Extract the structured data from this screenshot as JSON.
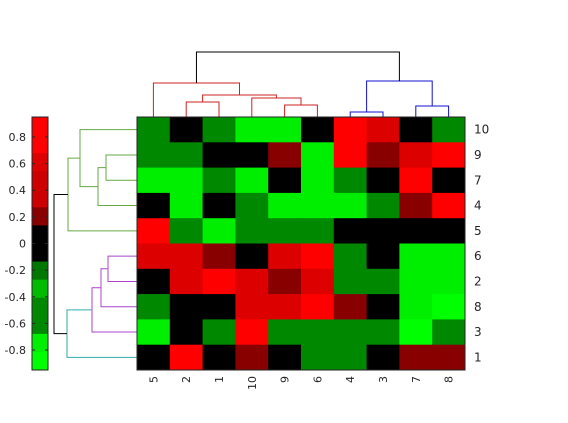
{
  "chart_data": {
    "type": "heatmap",
    "title": "",
    "xlabel": "",
    "ylabel": "",
    "column_labels": [
      "5",
      "2",
      "1",
      "10",
      "9",
      "6",
      "4",
      "3",
      "7",
      "8"
    ],
    "row_labels": [
      "10",
      "9",
      "7",
      "4",
      "5",
      "6",
      "2",
      "8",
      "3",
      "1"
    ],
    "values": [
      [
        -0.5,
        0.0,
        -0.5,
        -0.8,
        -0.8,
        0.0,
        0.8,
        0.6,
        0.0,
        -0.5
      ],
      [
        -0.5,
        -0.5,
        0.0,
        0.0,
        0.2,
        -0.8,
        0.8,
        0.2,
        0.6,
        0.8
      ],
      [
        -0.8,
        -0.8,
        -0.5,
        -0.8,
        0.0,
        -0.8,
        -0.5,
        0.0,
        0.8,
        0.0
      ],
      [
        0.0,
        -0.8,
        0.0,
        -0.5,
        -0.8,
        -0.8,
        -0.8,
        -0.5,
        0.2,
        0.8
      ],
      [
        0.8,
        -0.5,
        -0.8,
        -0.5,
        -0.5,
        -0.5,
        0.0,
        0.0,
        0.0,
        0.0
      ],
      [
        0.6,
        0.6,
        0.2,
        0.0,
        0.6,
        0.8,
        -0.5,
        0.0,
        -0.8,
        -0.8
      ],
      [
        0.0,
        0.6,
        0.8,
        0.6,
        0.2,
        0.6,
        -0.5,
        -0.5,
        -0.8,
        -0.8
      ],
      [
        -0.5,
        0.0,
        0.0,
        0.6,
        0.6,
        0.8,
        0.2,
        0.0,
        -0.8,
        -0.9
      ],
      [
        -0.8,
        0.0,
        -0.5,
        0.8,
        -0.5,
        -0.5,
        -0.5,
        -0.5,
        -0.9,
        -0.5
      ],
      [
        0.0,
        0.8,
        0.0,
        0.2,
        0.0,
        -0.5,
        -0.5,
        0.0,
        0.2,
        0.2
      ]
    ],
    "colorbar": {
      "ticks": [
        0.8,
        0.6,
        0.4,
        0.2,
        0,
        -0.2,
        -0.4,
        -0.6,
        -0.8
      ],
      "tick_labels": [
        "0.8",
        "0.6",
        "0.4",
        "0.2",
        "0",
        "-0.2",
        "-0.4",
        "-0.6",
        "-0.8"
      ],
      "range": [
        -0.95,
        0.95
      ],
      "placement": "left",
      "levels": [
        {
          "value": 0.8,
          "color": "#ff0000"
        },
        {
          "value": 0.6,
          "color": "#dd0000"
        },
        {
          "value": 0.4,
          "color": "#cc0000"
        },
        {
          "value": 0.2,
          "color": "#880000"
        },
        {
          "value": 0.0,
          "color": "#000000"
        },
        {
          "value": -0.2,
          "color": "#007700"
        },
        {
          "value": -0.4,
          "color": "#00bb00"
        },
        {
          "value": -0.5,
          "color": "#008800"
        },
        {
          "value": -0.8,
          "color": "#00ee00"
        },
        {
          "value": -0.95,
          "color": "#00ff00"
        }
      ]
    },
    "dendrograms": {
      "column": {
        "leaf_order": [
          "5",
          "2",
          "1",
          "10",
          "9",
          "6",
          "4",
          "3",
          "7",
          "8"
        ],
        "cluster_colors": [
          "#cc2222",
          "#1111cc"
        ],
        "root_color": "#000000"
      },
      "row": {
        "leaf_order": [
          "10",
          "9",
          "7",
          "4",
          "5",
          "6",
          "2",
          "8",
          "3",
          "1"
        ],
        "cluster_colors": [
          "#66aa44",
          "#aa44cc",
          "#33aaaa"
        ],
        "root_color": "#000000"
      }
    }
  }
}
